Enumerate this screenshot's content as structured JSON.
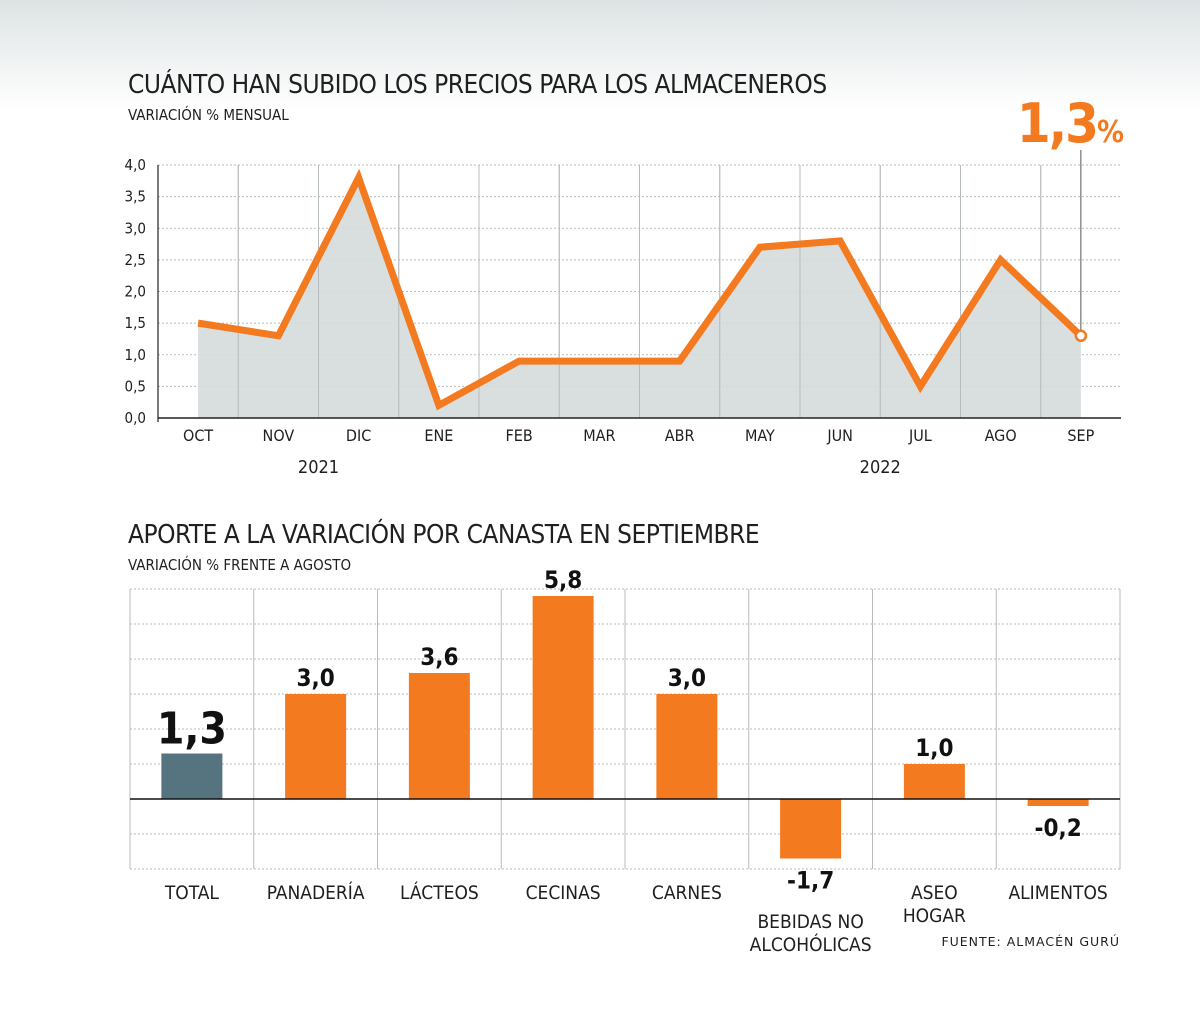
{
  "line_chart": {
    "title": "CUÁNTO HAN SUBIDO LOS PRECIOS PARA LOS ALMACENEROS",
    "subtitle": "VARIACIÓN % MENSUAL",
    "highlight_value": "1,3",
    "highlight_unit": "%",
    "years": [
      "2021",
      "2022"
    ]
  },
  "bar_chart": {
    "title": "APORTE A LA VARIACIÓN POR CANASTA EN SEPTIEMBRE",
    "subtitle": "VARIACIÓN % FRENTE A AGOSTO"
  },
  "source": "FUENTE: ALMACÉN GURÚ",
  "colors": {
    "accent": "#f47a20",
    "area": "#d5dadb",
    "total_bar": "#557480",
    "grid": "#bbbbbb"
  },
  "chart_data": [
    {
      "type": "area",
      "categories": [
        "OCT",
        "NOV",
        "DIC",
        "ENE",
        "FEB",
        "MAR",
        "ABR",
        "MAY",
        "JUN",
        "JUL",
        "AGO",
        "SEP"
      ],
      "values": [
        1.5,
        1.3,
        3.8,
        0.2,
        0.9,
        0.9,
        0.9,
        2.7,
        2.8,
        0.5,
        2.5,
        1.3
      ],
      "ylim": [
        0,
        4
      ],
      "yticks": [
        "0,0",
        "0,5",
        "1,0",
        "1,5",
        "2,0",
        "2,5",
        "3,0",
        "3,5",
        "4,0"
      ],
      "ytick_values": [
        0,
        0.5,
        1,
        1.5,
        2,
        2.5,
        3,
        3.5,
        4
      ],
      "grid": true
    },
    {
      "type": "bar",
      "categories": [
        "TOTAL",
        "PANADERÍA",
        "LÁCTEOS",
        "CECINAS",
        "CARNES",
        "BEBIDAS NO ALCOHÓLICAS",
        "ASEO HOGAR",
        "ALIMENTOS"
      ],
      "category_lines": [
        [
          "TOTAL"
        ],
        [
          "PANADERÍA"
        ],
        [
          "LÁCTEOS"
        ],
        [
          "CECINAS"
        ],
        [
          "CARNES"
        ],
        [
          "BEBIDAS NO",
          "ALCOHÓLICAS"
        ],
        [
          "ASEO",
          "HOGAR"
        ],
        [
          "ALIMENTOS"
        ]
      ],
      "values": [
        1.3,
        3.0,
        3.6,
        5.8,
        3.0,
        -1.7,
        1.0,
        -0.2
      ],
      "labels": [
        "1,3",
        "3,0",
        "3,6",
        "5,8",
        "3,0",
        "-1,7",
        "1,0",
        "-0,2"
      ],
      "ylim": [
        -2,
        6
      ],
      "grid": true
    }
  ]
}
